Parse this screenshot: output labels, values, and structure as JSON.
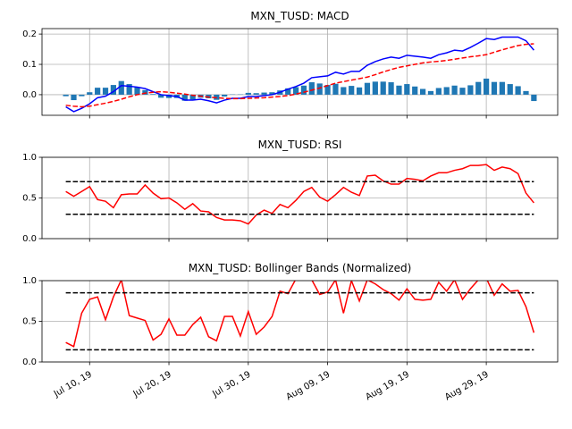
{
  "chart_data": [
    {
      "type": "line",
      "title": "MXN_TUSD: MACD",
      "x": [
        "2019-07-07",
        "2019-07-08",
        "2019-07-09",
        "2019-07-10",
        "2019-07-11",
        "2019-07-12",
        "2019-07-13",
        "2019-07-14",
        "2019-07-15",
        "2019-07-16",
        "2019-07-17",
        "2019-07-18",
        "2019-07-19",
        "2019-07-20",
        "2019-07-21",
        "2019-07-22",
        "2019-07-23",
        "2019-07-24",
        "2019-07-25",
        "2019-07-26",
        "2019-07-27",
        "2019-07-28",
        "2019-07-29",
        "2019-07-30",
        "2019-07-31",
        "2019-08-01",
        "2019-08-02",
        "2019-08-03",
        "2019-08-04",
        "2019-08-05",
        "2019-08-06",
        "2019-08-07",
        "2019-08-08",
        "2019-08-09",
        "2019-08-10",
        "2019-08-11",
        "2019-08-12",
        "2019-08-13",
        "2019-08-14",
        "2019-08-15",
        "2019-08-16",
        "2019-08-17",
        "2019-08-18",
        "2019-08-19",
        "2019-08-20",
        "2019-08-21",
        "2019-08-22",
        "2019-08-23",
        "2019-08-24",
        "2019-08-25",
        "2019-08-26",
        "2019-08-27",
        "2019-08-28",
        "2019-08-29",
        "2019-08-30",
        "2019-08-31",
        "2019-09-01",
        "2019-09-02",
        "2019-09-03",
        "2019-09-04"
      ],
      "series": [
        {
          "type": "bar",
          "color": "#1f77b4",
          "values": [
            -0.005,
            -0.018,
            -0.005,
            0.008,
            0.023,
            0.023,
            0.032,
            0.045,
            0.035,
            0.025,
            0.015,
            0.002,
            -0.01,
            -0.011,
            -0.011,
            -0.02,
            -0.016,
            -0.01,
            -0.012,
            -0.017,
            -0.006,
            0.001,
            0.001,
            0.006,
            0.005,
            0.007,
            0.008,
            0.014,
            0.021,
            0.025,
            0.03,
            0.041,
            0.037,
            0.032,
            0.036,
            0.025,
            0.029,
            0.024,
            0.039,
            0.043,
            0.043,
            0.041,
            0.03,
            0.035,
            0.027,
            0.019,
            0.012,
            0.022,
            0.025,
            0.03,
            0.023,
            0.031,
            0.042,
            0.053,
            0.042,
            0.042,
            0.035,
            0.028,
            0.012,
            -0.021
          ]
        },
        {
          "type": "line",
          "color": "#0000ff",
          "values": [
            -0.04,
            -0.056,
            -0.045,
            -0.03,
            -0.01,
            -0.005,
            0.01,
            0.03,
            0.028,
            0.025,
            0.02,
            0.01,
            0.0,
            -0.003,
            -0.006,
            -0.018,
            -0.018,
            -0.015,
            -0.02,
            -0.027,
            -0.018,
            -0.012,
            -0.012,
            -0.006,
            -0.006,
            -0.003,
            0.0,
            0.008,
            0.018,
            0.027,
            0.038,
            0.056,
            0.059,
            0.062,
            0.074,
            0.068,
            0.077,
            0.077,
            0.097,
            0.109,
            0.118,
            0.124,
            0.12,
            0.13,
            0.127,
            0.124,
            0.12,
            0.132,
            0.138,
            0.147,
            0.144,
            0.156,
            0.17,
            0.185,
            0.182,
            0.19,
            0.19,
            0.19,
            0.178,
            0.147
          ]
        },
        {
          "type": "line",
          "dashed": true,
          "color": "#ff0000",
          "values": [
            -0.035,
            -0.038,
            -0.04,
            -0.038,
            -0.033,
            -0.028,
            -0.022,
            -0.015,
            -0.007,
            0.0,
            0.005,
            0.008,
            0.01,
            0.008,
            0.005,
            0.002,
            -0.002,
            -0.005,
            -0.008,
            -0.01,
            -0.012,
            -0.013,
            -0.013,
            -0.012,
            -0.011,
            -0.01,
            -0.008,
            -0.006,
            -0.003,
            0.002,
            0.008,
            0.015,
            0.022,
            0.03,
            0.038,
            0.043,
            0.048,
            0.053,
            0.058,
            0.066,
            0.075,
            0.083,
            0.09,
            0.095,
            0.1,
            0.105,
            0.108,
            0.11,
            0.113,
            0.117,
            0.121,
            0.125,
            0.128,
            0.132,
            0.14,
            0.148,
            0.155,
            0.162,
            0.166,
            0.168
          ]
        }
      ],
      "xlim": [
        "2019-07-04",
        "2019-09-07"
      ],
      "xticks": [
        "2019-07-10",
        "2019-07-20",
        "2019-07-30",
        "2019-08-09",
        "2019-08-19",
        "2019-08-29"
      ],
      "ylim": [
        -0.068,
        0.218
      ],
      "yticks": [
        {
          "value": 0,
          "label": "0.0"
        },
        0.1,
        0.2
      ],
      "grid": true
    },
    {
      "type": "line",
      "title": "MXN_TUSD: RSI",
      "x": [
        "2019-07-07",
        "2019-07-08",
        "2019-07-09",
        "2019-07-10",
        "2019-07-11",
        "2019-07-12",
        "2019-07-13",
        "2019-07-14",
        "2019-07-15",
        "2019-07-16",
        "2019-07-17",
        "2019-07-18",
        "2019-07-19",
        "2019-07-20",
        "2019-07-21",
        "2019-07-22",
        "2019-07-23",
        "2019-07-24",
        "2019-07-25",
        "2019-07-26",
        "2019-07-27",
        "2019-07-28",
        "2019-07-29",
        "2019-07-30",
        "2019-07-31",
        "2019-08-01",
        "2019-08-02",
        "2019-08-03",
        "2019-08-04",
        "2019-08-05",
        "2019-08-06",
        "2019-08-07",
        "2019-08-08",
        "2019-08-09",
        "2019-08-10",
        "2019-08-11",
        "2019-08-12",
        "2019-08-13",
        "2019-08-14",
        "2019-08-15",
        "2019-08-16",
        "2019-08-17",
        "2019-08-18",
        "2019-08-19",
        "2019-08-20",
        "2019-08-21",
        "2019-08-22",
        "2019-08-23",
        "2019-08-24",
        "2019-08-25",
        "2019-08-26",
        "2019-08-27",
        "2019-08-28",
        "2019-08-29",
        "2019-08-30",
        "2019-08-31",
        "2019-09-01",
        "2019-09-02",
        "2019-09-03",
        "2019-09-04"
      ],
      "series": [
        {
          "type": "line",
          "color": "#ff0000",
          "values": [
            0.58,
            0.52,
            0.58,
            0.64,
            0.48,
            0.46,
            0.38,
            0.54,
            0.55,
            0.55,
            0.66,
            0.56,
            0.49,
            0.5,
            0.44,
            0.36,
            0.43,
            0.34,
            0.33,
            0.26,
            0.23,
            0.23,
            0.22,
            0.18,
            0.29,
            0.35,
            0.31,
            0.42,
            0.38,
            0.47,
            0.58,
            0.63,
            0.51,
            0.46,
            0.54,
            0.63,
            0.57,
            0.53,
            0.77,
            0.78,
            0.71,
            0.67,
            0.67,
            0.74,
            0.73,
            0.71,
            0.77,
            0.81,
            0.81,
            0.84,
            0.86,
            0.9,
            0.9,
            0.91,
            0.84,
            0.88,
            0.86,
            0.8,
            0.56,
            0.44
          ]
        }
      ],
      "hlines": [
        0.3,
        0.7
      ],
      "hline_color": "#000000",
      "xlim": [
        "2019-07-04",
        "2019-09-07"
      ],
      "xticks": [
        "2019-07-10",
        "2019-07-20",
        "2019-07-30",
        "2019-08-09",
        "2019-08-19",
        "2019-08-29"
      ],
      "ylim": [
        0,
        1
      ],
      "yticks": [
        {
          "value": 0,
          "label": "0.0"
        },
        0.5,
        {
          "value": 1,
          "label": "1.0"
        }
      ],
      "grid": true
    },
    {
      "type": "line",
      "title": "MXN_TUSD: Bollinger Bands (Normalized)",
      "x": [
        "2019-07-07",
        "2019-07-08",
        "2019-07-09",
        "2019-07-10",
        "2019-07-11",
        "2019-07-12",
        "2019-07-13",
        "2019-07-14",
        "2019-07-15",
        "2019-07-16",
        "2019-07-17",
        "2019-07-18",
        "2019-07-19",
        "2019-07-20",
        "2019-07-21",
        "2019-07-22",
        "2019-07-23",
        "2019-07-24",
        "2019-07-25",
        "2019-07-26",
        "2019-07-27",
        "2019-07-28",
        "2019-07-29",
        "2019-07-30",
        "2019-07-31",
        "2019-08-01",
        "2019-08-02",
        "2019-08-03",
        "2019-08-04",
        "2019-08-05",
        "2019-08-06",
        "2019-08-07",
        "2019-08-08",
        "2019-08-09",
        "2019-08-10",
        "2019-08-11",
        "2019-08-12",
        "2019-08-13",
        "2019-08-14",
        "2019-08-15",
        "2019-08-16",
        "2019-08-17",
        "2019-08-18",
        "2019-08-19",
        "2019-08-20",
        "2019-08-21",
        "2019-08-22",
        "2019-08-23",
        "2019-08-24",
        "2019-08-25",
        "2019-08-26",
        "2019-08-27",
        "2019-08-28",
        "2019-08-29",
        "2019-08-30",
        "2019-08-31",
        "2019-09-01",
        "2019-09-02",
        "2019-09-03",
        "2019-09-04"
      ],
      "series": [
        {
          "type": "line",
          "color": "#ff0000",
          "values": [
            0.24,
            0.19,
            0.6,
            0.77,
            0.8,
            0.52,
            0.8,
            1.01,
            0.57,
            0.54,
            0.51,
            0.27,
            0.34,
            0.53,
            0.33,
            0.33,
            0.46,
            0.55,
            0.31,
            0.26,
            0.56,
            0.56,
            0.32,
            0.62,
            0.34,
            0.43,
            0.56,
            0.87,
            0.84,
            1.02,
            1.01,
            1.01,
            0.83,
            0.86,
            1.01,
            0.6,
            1.0,
            0.75,
            1.01,
            0.96,
            0.89,
            0.84,
            0.76,
            0.9,
            0.77,
            0.76,
            0.77,
            0.98,
            0.87,
            1.01,
            0.77,
            0.9,
            1.01,
            1.03,
            0.82,
            0.96,
            0.87,
            0.88,
            0.68,
            0.36
          ]
        }
      ],
      "hlines": [
        0.15,
        0.85
      ],
      "hline_color": "#000000",
      "xlim": [
        "2019-07-04",
        "2019-09-07"
      ],
      "xticks": [
        {
          "value": "2019-07-10",
          "label": "Jul 10, 19"
        },
        {
          "value": "2019-07-20",
          "label": "Jul 20, 19"
        },
        {
          "value": "2019-07-30",
          "label": "Jul 30, 19"
        },
        {
          "value": "2019-08-09",
          "label": "Aug 09, 19"
        },
        {
          "value": "2019-08-19",
          "label": "Aug 19, 19"
        },
        {
          "value": "2019-08-29",
          "label": "Aug 29, 19"
        }
      ],
      "ylim": [
        0,
        1
      ],
      "yticks": [
        {
          "value": 0,
          "label": "0.0"
        },
        0.5,
        {
          "value": 1,
          "label": "1.0"
        }
      ],
      "grid": true
    }
  ]
}
